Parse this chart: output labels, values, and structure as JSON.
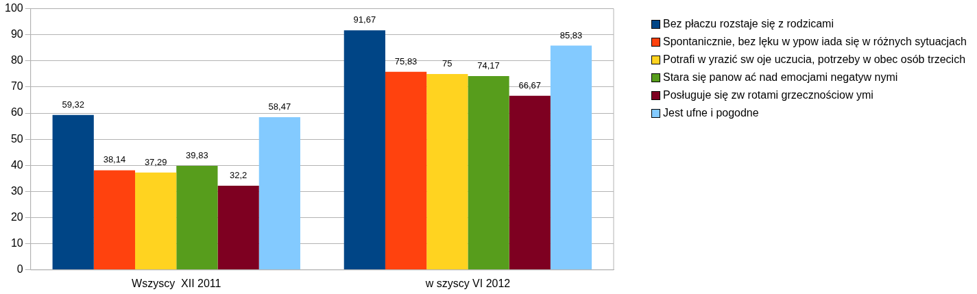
{
  "chart_data": {
    "type": "bar",
    "categories": [
      "Wszyscy  XII 2011",
      "w szyscy VI 2012"
    ],
    "series": [
      {
        "name": "Bez płaczu rozstaje się z rodzicami",
        "color": "#004586",
        "values": [
          59.32,
          91.67
        ],
        "value_labels": [
          "59,32",
          "91,67"
        ]
      },
      {
        "name": "Spontanicznie, bez lęku w ypow iada się w różnych sytuacjach",
        "color": "#ff420e",
        "values": [
          38.14,
          75.83
        ],
        "value_labels": [
          "38,14",
          "75,83"
        ]
      },
      {
        "name": "Potrafi w yrazić sw oje uczucia, potrzeby w obec osób trzecich",
        "color": "#ffd320",
        "values": [
          37.29,
          75
        ],
        "value_labels": [
          "37,29",
          "75"
        ]
      },
      {
        "name": "Stara się panow ać nad emocjami negatyw nymi",
        "color": "#579d1c",
        "values": [
          39.83,
          74.17
        ],
        "value_labels": [
          "39,83",
          "74,17"
        ]
      },
      {
        "name": "Posługuje się zw rotami grzecznościow ymi",
        "color": "#7e0021",
        "values": [
          32.2,
          66.67
        ],
        "value_labels": [
          "32,2",
          "66,67"
        ]
      },
      {
        "name": "Jest ufne i pogodne",
        "color": "#83caff",
        "values": [
          58.47,
          85.83
        ],
        "value_labels": [
          "58,47",
          "85,83"
        ]
      }
    ],
    "ylim": [
      0,
      100
    ],
    "yticks": [
      0,
      10,
      20,
      30,
      40,
      50,
      60,
      70,
      80,
      90,
      100
    ],
    "grid": "y",
    "legend": "right"
  }
}
